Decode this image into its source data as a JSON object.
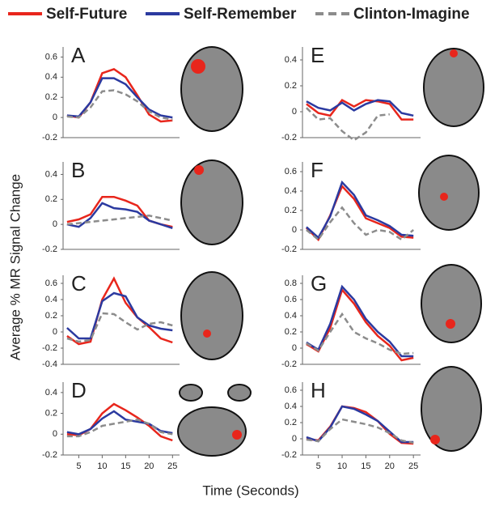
{
  "legend": [
    {
      "name": "Self-Future",
      "color": "#e8261c",
      "dashed": false
    },
    {
      "name": "Self-Remember",
      "color": "#2b3aa0",
      "dashed": false
    },
    {
      "name": "Clinton-Imagine",
      "color": "#8c8c8c",
      "dashed": true
    }
  ],
  "ylabel": "Average % MR Signal Change",
  "xlabel": "Time (Seconds)",
  "chart_data": [
    {
      "type": "line",
      "label": "A",
      "x": [
        2.5,
        5,
        7.5,
        10,
        12.5,
        15,
        17.5,
        20,
        22.5,
        25
      ],
      "xlim": [
        2,
        26.5
      ],
      "ylim": [
        -0.2,
        0.7
      ],
      "yticks": [
        -0.2,
        0,
        0.2,
        0.4,
        0.6
      ],
      "series": [
        {
          "values": [
            0.02,
            0,
            0.15,
            0.44,
            0.48,
            0.4,
            0.22,
            0.03,
            -0.04,
            -0.03
          ]
        },
        {
          "values": [
            0.02,
            0.01,
            0.15,
            0.39,
            0.39,
            0.33,
            0.2,
            0.08,
            0.02,
            0
          ]
        },
        {
          "values": [
            0.01,
            0,
            0.1,
            0.26,
            0.27,
            0.23,
            0.16,
            0.06,
            0,
            -0.02
          ]
        }
      ]
    },
    {
      "type": "line",
      "label": "B",
      "x": [
        2.5,
        5,
        7.5,
        10,
        12.5,
        15,
        17.5,
        20,
        22.5,
        25
      ],
      "xlim": [
        2,
        26.5
      ],
      "ylim": [
        -0.2,
        0.5
      ],
      "yticks": [
        -0.2,
        0,
        0.2,
        0.4
      ],
      "series": [
        {
          "values": [
            0.02,
            0.04,
            0.08,
            0.22,
            0.22,
            0.19,
            0.15,
            0.03,
            0,
            -0.02
          ]
        },
        {
          "values": [
            0,
            -0.02,
            0.05,
            0.17,
            0.13,
            0.12,
            0.1,
            0.03,
            0,
            -0.03
          ]
        },
        {
          "values": [
            0,
            0.01,
            0.02,
            0.03,
            0.04,
            0.05,
            0.06,
            0.07,
            0.05,
            0.03
          ]
        }
      ]
    },
    {
      "type": "line",
      "label": "C",
      "x": [
        2.5,
        5,
        7.5,
        10,
        12.5,
        15,
        17.5,
        20,
        22.5,
        25
      ],
      "xlim": [
        2,
        26.5
      ],
      "ylim": [
        -0.4,
        0.7
      ],
      "yticks": [
        -0.4,
        -0.2,
        0,
        0.2,
        0.4,
        0.6
      ],
      "series": [
        {
          "values": [
            -0.05,
            -0.15,
            -0.12,
            0.4,
            0.66,
            0.36,
            0.18,
            0.06,
            -0.08,
            -0.13
          ]
        },
        {
          "values": [
            0.05,
            -0.08,
            -0.08,
            0.38,
            0.48,
            0.44,
            0.18,
            0.08,
            0.04,
            0.02
          ]
        },
        {
          "values": [
            -0.08,
            -0.12,
            -0.1,
            0.23,
            0.22,
            0.12,
            0.03,
            0.1,
            0.12,
            0.08
          ]
        }
      ]
    },
    {
      "type": "line",
      "label": "D",
      "x": [
        2.5,
        5,
        7.5,
        10,
        12.5,
        15,
        17.5,
        20,
        22.5,
        25
      ],
      "xlim": [
        2,
        26.5
      ],
      "xticks": [
        5,
        10,
        15,
        20,
        25
      ],
      "ylim": [
        -0.2,
        0.5
      ],
      "yticks": [
        -0.2,
        0,
        0.2,
        0.4
      ],
      "series": [
        {
          "values": [
            0,
            -0.01,
            0.05,
            0.2,
            0.29,
            0.23,
            0.16,
            0.08,
            -0.02,
            -0.06
          ]
        },
        {
          "values": [
            0.02,
            0,
            0.05,
            0.15,
            0.22,
            0.14,
            0.12,
            0.1,
            0.03,
            0.01
          ]
        },
        {
          "values": [
            -0.02,
            -0.02,
            0.02,
            0.08,
            0.1,
            0.12,
            0.14,
            0.1,
            0.02,
            0
          ]
        }
      ]
    },
    {
      "type": "line",
      "label": "E",
      "x": [
        2.5,
        5,
        7.5,
        10,
        12.5,
        15,
        17.5,
        20,
        22.5,
        25
      ],
      "xlim": [
        2,
        26.5
      ],
      "ylim": [
        -0.2,
        0.5
      ],
      "yticks": [
        -0.2,
        0,
        0.2,
        0.4
      ],
      "series": [
        {
          "values": [
            0.06,
            -0.01,
            -0.03,
            0.09,
            0.04,
            0.09,
            0.08,
            0.06,
            -0.06,
            -0.06
          ]
        },
        {
          "values": [
            0.08,
            0.03,
            0.01,
            0.07,
            0.01,
            0.06,
            0.09,
            0.08,
            -0.01,
            -0.03
          ]
        },
        {
          "values": [
            0.03,
            -0.06,
            -0.05,
            -0.15,
            -0.22,
            -0.16,
            -0.03,
            -0.02,
            null,
            null
          ]
        }
      ]
    },
    {
      "type": "line",
      "label": "F",
      "x": [
        2.5,
        5,
        7.5,
        10,
        12.5,
        15,
        17.5,
        20,
        22.5,
        25
      ],
      "xlim": [
        2,
        26.5
      ],
      "ylim": [
        -0.2,
        0.7
      ],
      "yticks": [
        -0.2,
        0,
        0.2,
        0.4,
        0.6
      ],
      "series": [
        {
          "values": [
            0.02,
            -0.1,
            0.15,
            0.45,
            0.32,
            0.12,
            0.07,
            0.02,
            -0.07,
            -0.08
          ]
        },
        {
          "values": [
            0.03,
            -0.08,
            0.14,
            0.49,
            0.36,
            0.15,
            0.1,
            0.04,
            -0.05,
            -0.06
          ]
        },
        {
          "values": [
            0,
            -0.1,
            0.08,
            0.23,
            0.07,
            -0.05,
            0,
            -0.02,
            -0.1,
            0
          ]
        }
      ]
    },
    {
      "type": "line",
      "label": "G",
      "x": [
        2.5,
        5,
        7.5,
        10,
        12.5,
        15,
        17.5,
        20,
        22.5,
        25
      ],
      "xlim": [
        2,
        26.5
      ],
      "ylim": [
        -0.2,
        0.9
      ],
      "yticks": [
        -0.2,
        0,
        0.2,
        0.4,
        0.6,
        0.8
      ],
      "series": [
        {
          "values": [
            0.05,
            -0.04,
            0.25,
            0.72,
            0.55,
            0.32,
            0.15,
            0.03,
            -0.15,
            -0.12
          ]
        },
        {
          "values": [
            0.07,
            -0.02,
            0.3,
            0.76,
            0.6,
            0.36,
            0.2,
            0.08,
            -0.1,
            -0.1
          ]
        },
        {
          "values": [
            0.06,
            -0.03,
            0.2,
            0.42,
            0.2,
            0.12,
            0.06,
            -0.02,
            -0.07,
            -0.06
          ]
        }
      ]
    },
    {
      "type": "line",
      "label": "H",
      "x": [
        2.5,
        5,
        7.5,
        10,
        12.5,
        15,
        17.5,
        20,
        22.5,
        25
      ],
      "xlim": [
        2,
        26.5
      ],
      "xticks": [
        5,
        10,
        15,
        20,
        25
      ],
      "ylim": [
        -0.2,
        0.7
      ],
      "yticks": [
        -0.2,
        0,
        0.2,
        0.4,
        0.6
      ],
      "series": [
        {
          "values": [
            0,
            -0.02,
            0.15,
            0.4,
            0.38,
            0.33,
            0.22,
            0.06,
            -0.05,
            -0.06
          ]
        },
        {
          "values": [
            0.02,
            -0.03,
            0.14,
            0.4,
            0.37,
            0.3,
            0.22,
            0.09,
            -0.04,
            -0.04
          ]
        },
        {
          "values": [
            -0.01,
            -0.03,
            0.12,
            0.24,
            0.21,
            0.18,
            0.14,
            0.07,
            -0.02,
            -0.05
          ]
        }
      ]
    }
  ]
}
